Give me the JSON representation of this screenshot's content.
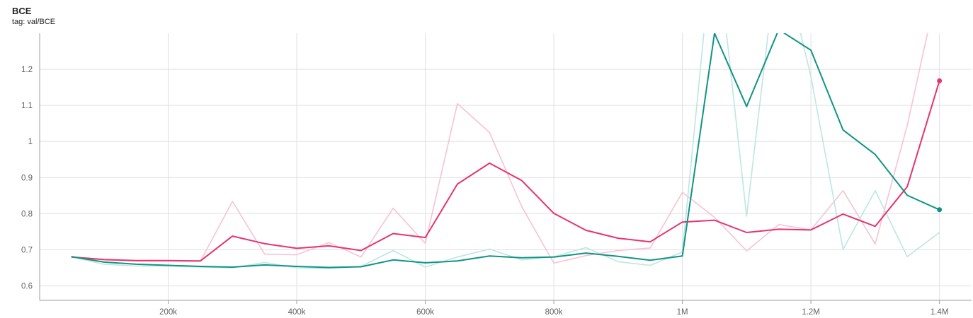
{
  "header": {
    "title": "BCE",
    "subtitle": "tag: val/BCE"
  },
  "colors": {
    "pink": "#e8336d",
    "teal": "#109485",
    "pink_raw": "#f7c3d2",
    "teal_raw": "#bde6e0",
    "grid": "#e0e0e0",
    "axis": "#9e9e9e"
  },
  "chart_data": {
    "type": "line",
    "title": "BCE",
    "subtitle": "tag: val/BCE",
    "xlabel": "",
    "ylabel": "",
    "xlim": [
      0,
      1450000
    ],
    "ylim": [
      0.56,
      1.3
    ],
    "grid": true,
    "x_ticks": [
      200000,
      400000,
      600000,
      800000,
      1000000,
      1200000,
      1400000
    ],
    "x_tick_labels": [
      "200k",
      "400k",
      "600k",
      "800k",
      "1M",
      "1.2M",
      "1.4M"
    ],
    "y_ticks": [
      0.6,
      0.7,
      0.8,
      0.9,
      1.0,
      1.1,
      1.2
    ],
    "y_tick_labels": [
      "0.6",
      "0.7",
      "0.8",
      "0.9",
      "1",
      "1.1",
      "1.2"
    ],
    "x": [
      50000,
      100000,
      150000,
      200000,
      250000,
      300000,
      350000,
      400000,
      450000,
      500000,
      550000,
      600000,
      650000,
      700000,
      750000,
      800000,
      850000,
      900000,
      950000,
      1000000,
      1050000,
      1100000,
      1150000,
      1200000,
      1250000,
      1300000,
      1350000,
      1400000
    ],
    "series": [
      {
        "role": "raw",
        "color": "#f7c3d2",
        "values": [
          0.68,
          0.672,
          0.669,
          0.669,
          0.668,
          0.834,
          0.688,
          0.686,
          0.72,
          0.68,
          0.815,
          0.718,
          1.105,
          1.025,
          0.82,
          0.663,
          0.684,
          0.698,
          0.705,
          0.859,
          0.79,
          0.697,
          0.77,
          0.755,
          0.864,
          0.716,
          1.045,
          1.45
        ]
      },
      {
        "role": "raw",
        "color": "#bde6e0",
        "values": [
          0.68,
          0.66,
          0.655,
          0.655,
          0.652,
          0.65,
          0.665,
          0.65,
          0.648,
          0.654,
          0.698,
          0.652,
          0.68,
          0.702,
          0.672,
          0.681,
          0.706,
          0.667,
          0.657,
          0.694,
          1.6,
          0.793,
          1.55,
          1.18,
          0.701,
          0.864,
          0.681,
          0.748
        ]
      },
      {
        "role": "smoothed",
        "color": "#e8336d",
        "values": [
          0.68,
          0.673,
          0.67,
          0.67,
          0.669,
          0.738,
          0.717,
          0.704,
          0.711,
          0.698,
          0.745,
          0.734,
          0.882,
          0.94,
          0.892,
          0.801,
          0.754,
          0.732,
          0.722,
          0.777,
          0.782,
          0.748,
          0.757,
          0.755,
          0.799,
          0.765,
          0.875,
          1.168
        ]
      },
      {
        "role": "smoothed",
        "color": "#109485",
        "values": [
          0.681,
          0.666,
          0.66,
          0.657,
          0.654,
          0.652,
          0.658,
          0.654,
          0.651,
          0.653,
          0.672,
          0.664,
          0.669,
          0.683,
          0.678,
          0.68,
          0.691,
          0.682,
          0.671,
          0.683,
          1.3,
          1.097,
          1.31,
          1.253,
          1.032,
          0.964,
          0.851,
          0.811
        ]
      }
    ]
  }
}
